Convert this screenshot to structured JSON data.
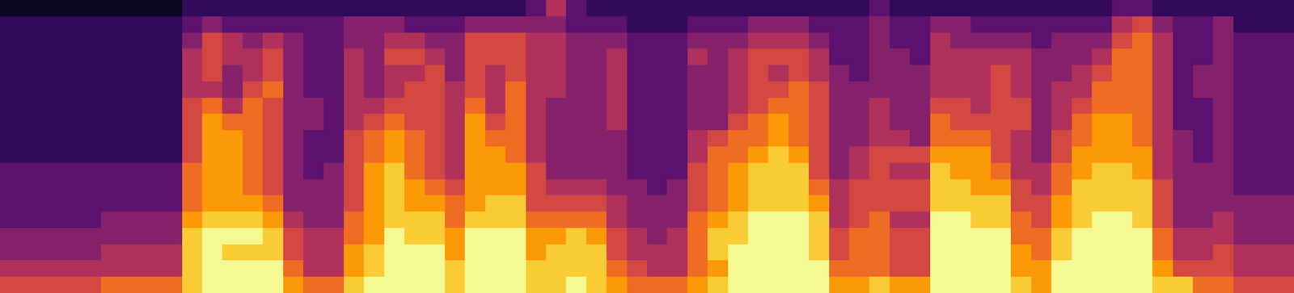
{
  "chart_data": {
    "type": "heatmap",
    "tick_labels": false,
    "cells": [
      [
        0,
        1,
        1,
        1,
        1,
        1,
        1,
        1,
        1,
        1,
        2,
        2,
        2,
        2,
        3,
        3,
        4,
        5
      ],
      [
        0,
        1,
        1,
        1,
        1,
        1,
        1,
        1,
        1,
        1,
        2,
        2,
        2,
        2,
        3,
        3,
        4,
        5
      ],
      [
        0,
        1,
        1,
        1,
        1,
        1,
        1,
        1,
        1,
        1,
        2,
        2,
        2,
        2,
        3,
        3,
        4,
        5
      ],
      [
        0,
        1,
        1,
        1,
        1,
        1,
        1,
        1,
        1,
        1,
        2,
        2,
        2,
        2,
        3,
        3,
        4,
        5
      ],
      [
        0,
        1,
        1,
        1,
        1,
        1,
        1,
        1,
        1,
        1,
        2,
        2,
        2,
        2,
        3,
        3,
        4,
        5
      ],
      [
        0,
        1,
        1,
        1,
        1,
        1,
        1,
        1,
        1,
        1,
        2,
        2,
        2,
        3,
        3,
        4,
        4,
        6
      ],
      [
        0,
        1,
        1,
        1,
        1,
        1,
        1,
        1,
        1,
        1,
        2,
        2,
        2,
        3,
        3,
        4,
        4,
        6
      ],
      [
        0,
        1,
        1,
        1,
        1,
        1,
        1,
        1,
        1,
        1,
        2,
        2,
        2,
        3,
        3,
        4,
        4,
        6
      ],
      [
        0,
        1,
        1,
        1,
        1,
        1,
        1,
        1,
        1,
        1,
        2,
        2,
        2,
        3,
        3,
        4,
        4,
        6
      ],
      [
        1,
        2,
        3,
        4,
        4,
        4,
        5,
        5,
        5,
        5,
        6,
        6,
        6,
        7,
        8,
        8,
        8,
        8
      ],
      [
        1,
        3,
        5,
        5,
        5,
        4,
        6,
        7,
        7,
        7,
        7,
        7,
        7,
        8,
        9,
        9,
        9,
        9
      ],
      [
        1,
        2,
        4,
        4,
        3,
        3,
        4,
        6,
        7,
        7,
        7,
        7,
        7,
        8,
        9,
        8,
        9,
        9
      ],
      [
        1,
        2,
        3,
        4,
        4,
        5,
        6,
        6,
        6,
        6,
        6,
        6,
        7,
        8,
        9,
        8,
        9,
        9
      ],
      [
        1,
        2,
        4,
        5,
        5,
        6,
        5,
        5,
        5,
        5,
        5,
        5,
        6,
        7,
        8,
        8,
        9,
        9
      ],
      [
        1,
        2,
        3,
        3,
        3,
        3,
        3,
        3,
        3,
        3,
        3,
        3,
        3,
        4,
        5,
        5,
        6,
        7
      ],
      [
        1,
        2,
        2,
        2,
        2,
        2,
        3,
        3,
        2,
        2,
        2,
        3,
        3,
        3,
        4,
        4,
        4,
        6
      ],
      [
        1,
        2,
        2,
        2,
        2,
        2,
        2,
        2,
        2,
        2,
        3,
        3,
        3,
        3,
        4,
        4,
        4,
        6
      ],
      [
        1,
        3,
        3,
        4,
        4,
        4,
        4,
        4,
        5,
        5,
        5,
        5,
        5,
        6,
        6,
        7,
        7,
        8
      ],
      [
        1,
        3,
        3,
        3,
        3,
        3,
        4,
        5,
        6,
        6,
        7,
        7,
        7,
        7,
        7,
        8,
        8,
        9
      ],
      [
        1,
        3,
        4,
        5,
        4,
        4,
        5,
        6,
        7,
        7,
        8,
        8,
        8,
        8,
        9,
        9,
        9,
        9
      ],
      [
        1,
        2,
        4,
        5,
        4,
        5,
        5,
        5,
        6,
        6,
        6,
        7,
        7,
        8,
        8,
        9,
        9,
        9
      ],
      [
        1,
        2,
        3,
        4,
        5,
        5,
        5,
        5,
        5,
        5,
        5,
        6,
        7,
        8,
        8,
        9,
        9,
        9
      ],
      [
        1,
        2,
        3,
        3,
        3,
        4,
        4,
        4,
        4,
        4,
        4,
        5,
        6,
        6,
        7,
        7,
        8,
        8
      ],
      [
        1,
        3,
        5,
        5,
        5,
        5,
        6,
        7,
        7,
        7,
        7,
        7,
        7,
        8,
        9,
        9,
        9,
        9
      ],
      [
        1,
        3,
        5,
        5,
        4,
        4,
        4,
        5,
        6,
        7,
        7,
        7,
        8,
        8,
        9,
        9,
        9,
        9
      ],
      [
        1,
        3,
        5,
        5,
        5,
        6,
        6,
        6,
        6,
        6,
        7,
        7,
        8,
        8,
        9,
        9,
        9,
        9
      ],
      [
        2,
        3,
        4,
        4,
        4,
        4,
        4,
        4,
        4,
        4,
        5,
        5,
        5,
        6,
        7,
        7,
        8,
        8
      ],
      [
        4,
        3,
        4,
        4,
        4,
        4,
        3,
        3,
        3,
        3,
        3,
        4,
        5,
        6,
        7,
        8,
        8,
        8
      ],
      [
        2,
        2,
        3,
        3,
        3,
        3,
        3,
        3,
        3,
        3,
        3,
        4,
        5,
        6,
        8,
        8,
        8,
        9
      ],
      [
        1,
        2,
        3,
        3,
        3,
        3,
        3,
        3,
        3,
        3,
        3,
        4,
        5,
        6,
        7,
        8,
        8,
        8
      ],
      [
        1,
        2,
        3,
        4,
        4,
        4,
        4,
        4,
        3,
        3,
        3,
        3,
        4,
        4,
        5,
        5,
        6,
        7
      ],
      [
        1,
        1,
        2,
        2,
        2,
        2,
        2,
        2,
        2,
        2,
        2,
        3,
        3,
        3,
        4,
        4,
        5,
        6
      ],
      [
        1,
        1,
        2,
        2,
        2,
        2,
        2,
        2,
        2,
        2,
        2,
        2,
        3,
        3,
        3,
        4,
        4,
        6
      ],
      [
        1,
        1,
        2,
        2,
        2,
        2,
        2,
        2,
        2,
        2,
        2,
        3,
        3,
        3,
        4,
        4,
        4,
        6
      ],
      [
        1,
        2,
        3,
        4,
        3,
        3,
        3,
        3,
        4,
        4,
        5,
        5,
        5,
        6,
        6,
        6,
        6,
        7
      ],
      [
        1,
        2,
        3,
        3,
        3,
        3,
        3,
        3,
        5,
        6,
        6,
        6,
        6,
        7,
        8,
        8,
        7,
        8
      ],
      [
        1,
        2,
        3,
        4,
        4,
        4,
        4,
        5,
        6,
        6,
        7,
        7,
        7,
        8,
        8,
        9,
        9,
        9
      ],
      [
        1,
        3,
        4,
        5,
        5,
        5,
        5,
        6,
        6,
        7,
        8,
        8,
        8,
        9,
        9,
        9,
        9,
        9
      ],
      [
        1,
        3,
        4,
        5,
        4,
        5,
        6,
        7,
        7,
        8,
        8,
        8,
        8,
        9,
        9,
        9,
        9,
        9
      ],
      [
        1,
        3,
        4,
        5,
        5,
        6,
        6,
        6,
        6,
        7,
        8,
        8,
        8,
        9,
        9,
        9,
        9,
        9
      ],
      [
        1,
        2,
        3,
        4,
        4,
        5,
        5,
        5,
        5,
        5,
        5,
        6,
        7,
        8,
        8,
        8,
        9,
        9
      ],
      [
        1,
        2,
        2,
        2,
        3,
        3,
        3,
        3,
        3,
        3,
        3,
        4,
        4,
        4,
        5,
        5,
        6,
        7
      ],
      [
        1,
        2,
        2,
        2,
        2,
        3,
        3,
        3,
        3,
        4,
        4,
        5,
        5,
        5,
        6,
        6,
        6,
        7
      ],
      [
        2,
        3,
        3,
        3,
        3,
        3,
        4,
        4,
        4,
        5,
        5,
        5,
        5,
        6,
        6,
        6,
        6,
        8
      ],
      [
        1,
        2,
        2,
        3,
        3,
        3,
        3,
        3,
        4,
        5,
        4,
        5,
        5,
        4,
        5,
        5,
        5,
        7
      ],
      [
        1,
        2,
        2,
        2,
        3,
        3,
        3,
        3,
        3,
        5,
        4,
        5,
        5,
        4,
        5,
        5,
        5,
        7
      ],
      [
        1,
        3,
        4,
        4,
        4,
        4,
        5,
        6,
        6,
        7,
        8,
        8,
        8,
        9,
        9,
        9,
        9,
        9
      ],
      [
        1,
        3,
        3,
        4,
        4,
        4,
        5,
        5,
        6,
        7,
        7,
        8,
        8,
        9,
        9,
        9,
        9,
        9
      ],
      [
        1,
        2,
        3,
        4,
        4,
        4,
        4,
        5,
        6,
        7,
        7,
        7,
        8,
        8,
        9,
        9,
        9,
        9
      ],
      [
        1,
        2,
        3,
        4,
        5,
        5,
        5,
        5,
        5,
        5,
        6,
        7,
        8,
        8,
        9,
        9,
        9,
        9
      ],
      [
        1,
        2,
        3,
        4,
        4,
        4,
        5,
        5,
        4,
        4,
        4,
        5,
        5,
        6,
        6,
        7,
        7,
        8
      ],
      [
        1,
        2,
        2,
        3,
        3,
        3,
        3,
        3,
        3,
        3,
        4,
        4,
        5,
        5,
        6,
        6,
        7,
        7
      ],
      [
        1,
        2,
        3,
        3,
        3,
        4,
        4,
        4,
        5,
        5,
        6,
        6,
        7,
        7,
        8,
        8,
        9,
        9
      ],
      [
        1,
        2,
        3,
        3,
        4,
        4,
        5,
        6,
        6,
        7,
        7,
        8,
        8,
        8,
        9,
        9,
        9,
        9
      ],
      [
        1,
        2,
        3,
        4,
        5,
        6,
        6,
        7,
        7,
        7,
        8,
        8,
        8,
        9,
        9,
        9,
        9,
        9
      ],
      [
        2,
        4,
        5,
        6,
        6,
        6,
        6,
        7,
        7,
        7,
        8,
        8,
        8,
        9,
        9,
        9,
        9,
        9
      ],
      [
        2,
        5,
        6,
        6,
        6,
        6,
        6,
        6,
        6,
        7,
        7,
        8,
        8,
        8,
        9,
        9,
        9,
        9
      ],
      [
        1,
        3,
        4,
        4,
        4,
        4,
        4,
        4,
        4,
        4,
        4,
        5,
        5,
        5,
        6,
        6,
        7,
        8
      ],
      [
        1,
        2,
        2,
        2,
        2,
        2,
        2,
        2,
        3,
        3,
        3,
        3,
        3,
        3,
        4,
        4,
        5,
        8
      ],
      [
        1,
        2,
        2,
        2,
        3,
        3,
        2,
        2,
        2,
        2,
        3,
        3,
        3,
        3,
        4,
        4,
        5,
        6
      ],
      [
        1,
        3,
        3,
        3,
        3,
        3,
        3,
        3,
        3,
        3,
        3,
        3,
        3,
        4,
        4,
        5,
        5,
        6
      ],
      [
        1,
        1,
        2,
        2,
        2,
        2,
        2,
        2,
        2,
        2,
        2,
        2,
        3,
        3,
        3,
        4,
        4,
        5
      ],
      [
        1,
        1,
        2,
        2,
        2,
        2,
        2,
        2,
        2,
        2,
        2,
        2,
        3,
        3,
        3,
        4,
        4,
        5
      ],
      [
        1,
        1,
        2,
        2,
        2,
        2,
        2,
        2,
        2,
        2,
        2,
        2,
        3,
        3,
        3,
        4,
        4,
        5
      ]
    ]
  }
}
